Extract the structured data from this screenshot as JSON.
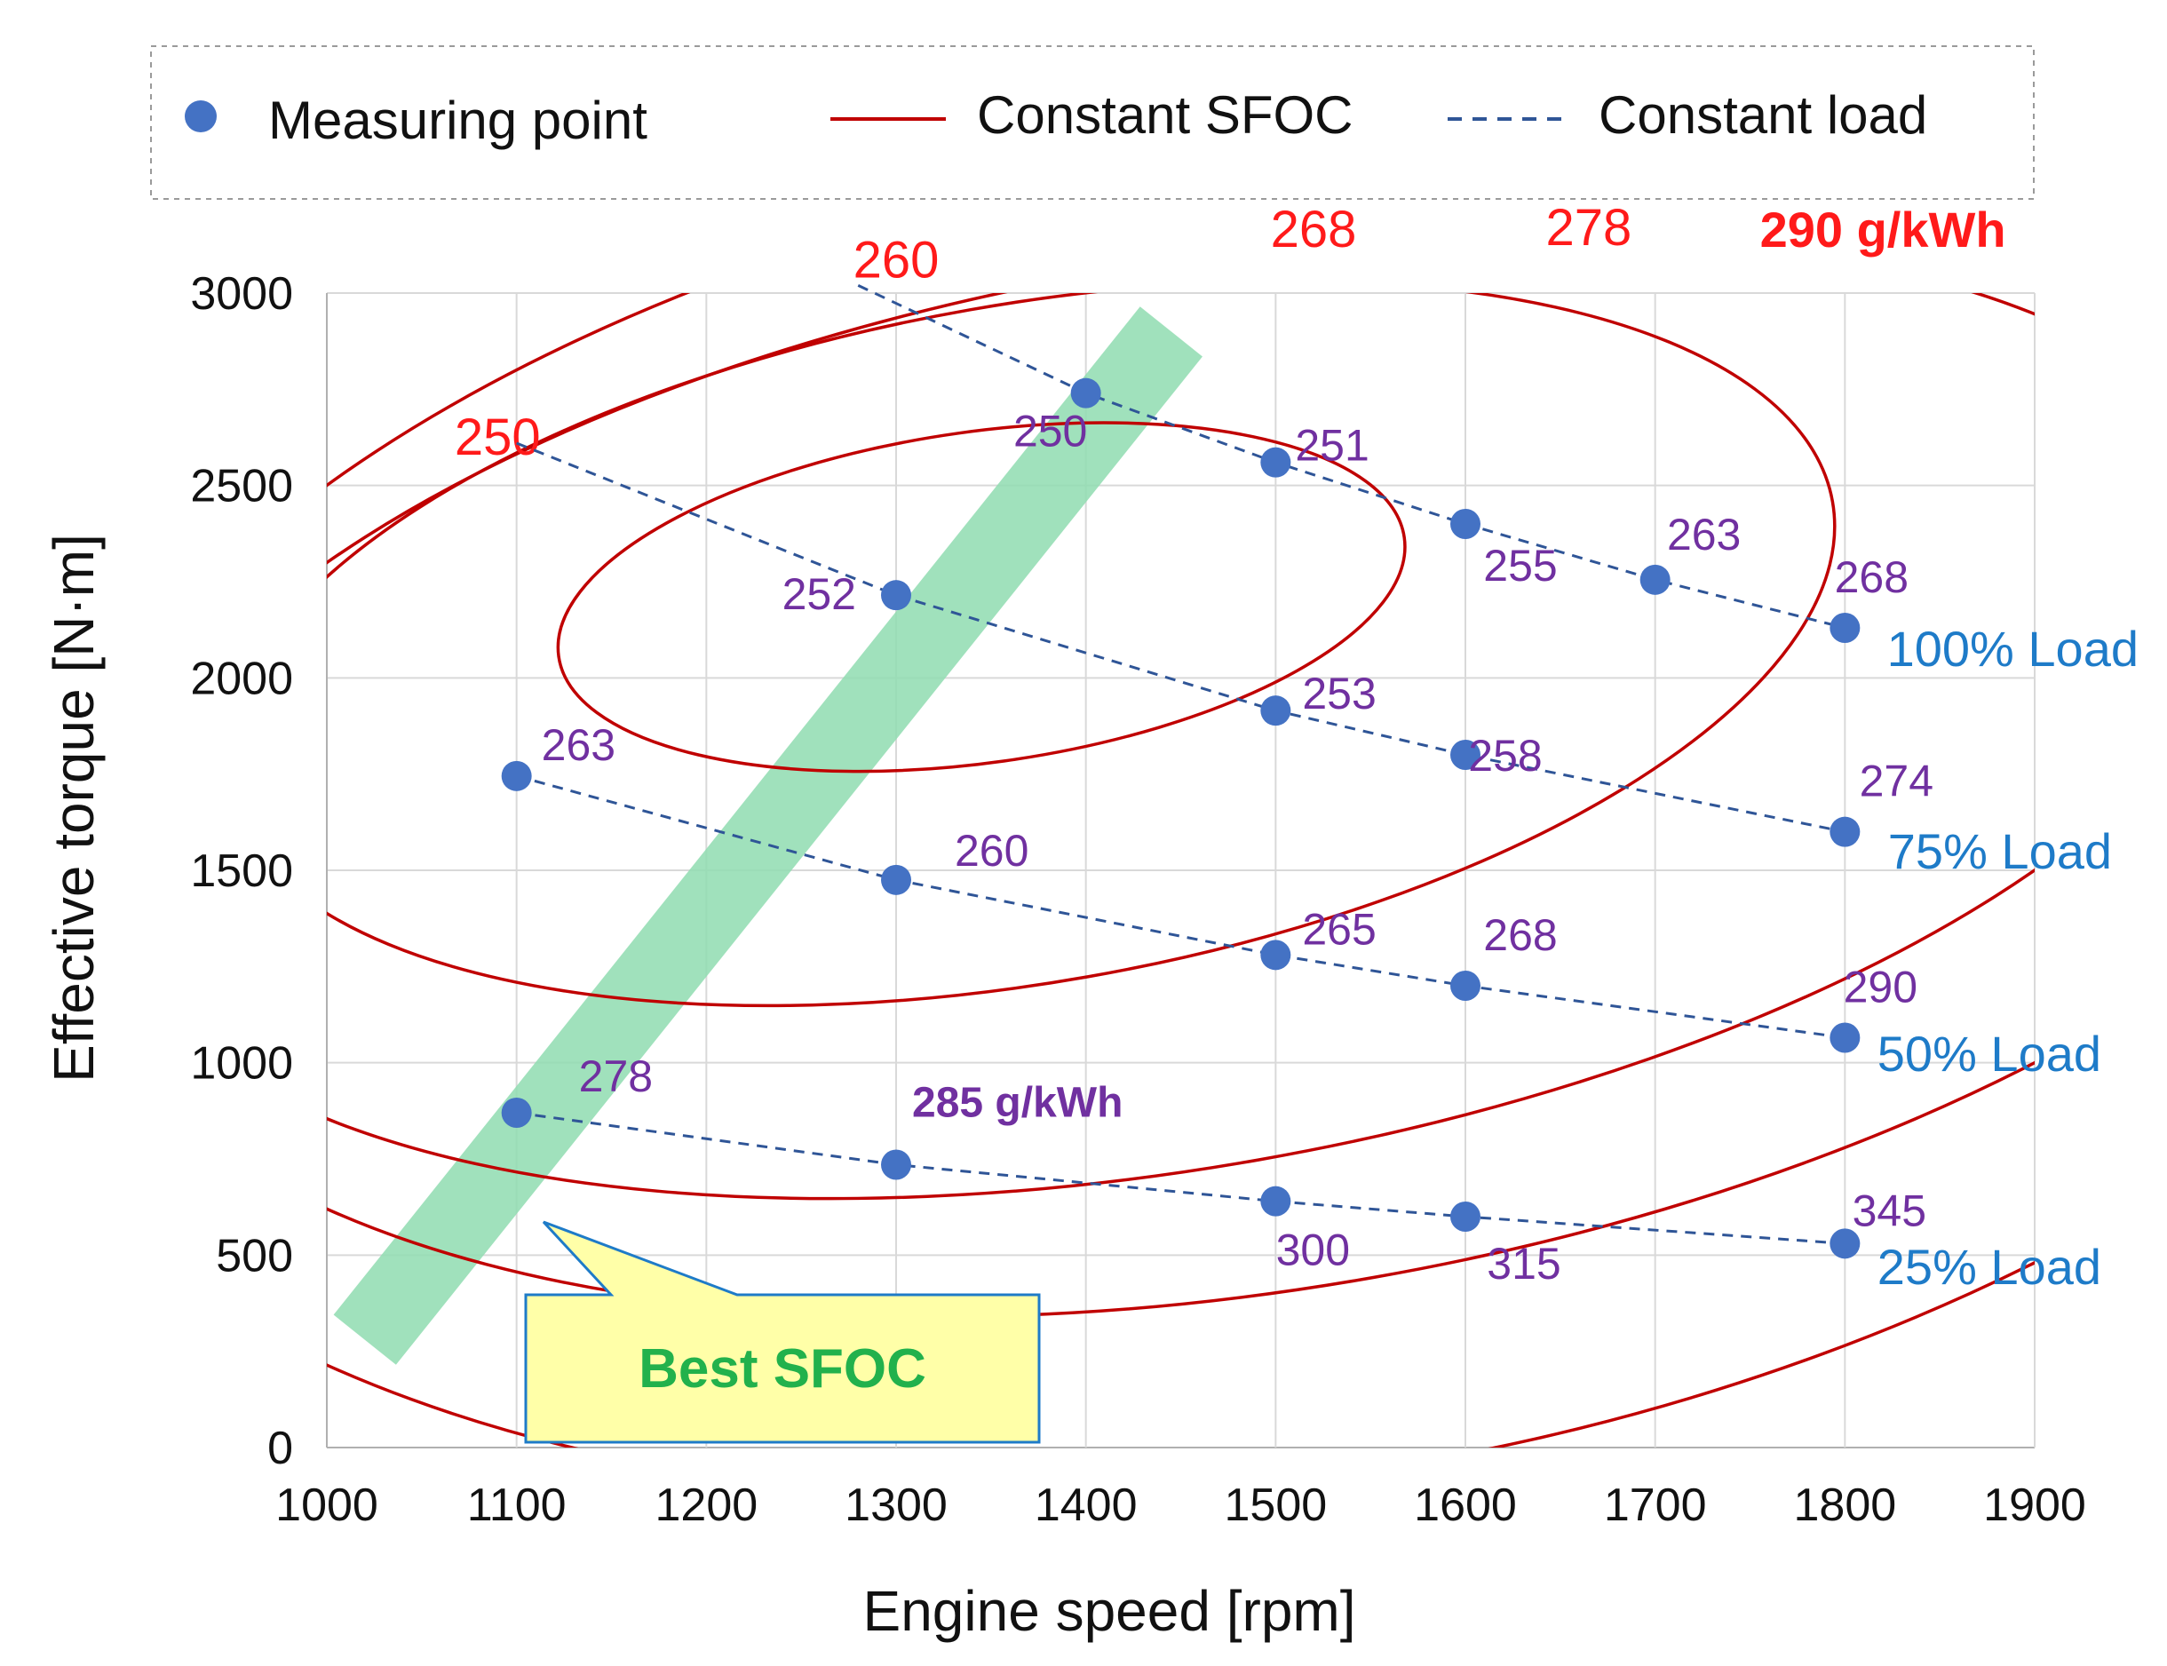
{
  "chart_data": {
    "type": "scatter",
    "title": "",
    "xlabel": "Engine speed [rpm]",
    "ylabel": "Effective torque [N·m]",
    "xlim": [
      1000,
      1900
    ],
    "ylim": [
      0,
      3000
    ],
    "xticks": [
      1000,
      1100,
      1200,
      1300,
      1400,
      1500,
      1600,
      1700,
      1800,
      1900
    ],
    "yticks": [
      0,
      500,
      1000,
      1500,
      2000,
      2500,
      3000
    ],
    "grid": true,
    "legend": {
      "placement": "top",
      "entries": [
        {
          "name": "Measuring point",
          "kind": "marker",
          "color": "#4472c4"
        },
        {
          "name": "Constant SFOC",
          "kind": "solid-line",
          "color": "#c00000"
        },
        {
          "name": "Constant load",
          "kind": "dashed-line",
          "color": "#2f5597"
        }
      ]
    },
    "colors": {
      "marker": "#4472c4",
      "sfoc_line": "#c00000",
      "load_line": "#2f5597",
      "sfoc_label": "#ff1a1a",
      "point_label": "#7030a0",
      "load_label": "#1e7bc8",
      "best_band": "#8fdcb0",
      "callout_fill": "#ffffa8",
      "callout_border": "#1e7bc8",
      "callout_text": "#22b14c"
    },
    "series": [
      {
        "name": "100% Load",
        "line_start": [
          1280,
          3020
        ],
        "points": [
          {
            "x": 1400,
            "y": 2740,
            "sfoc": "250"
          },
          {
            "x": 1500,
            "y": 2560,
            "sfoc": "251"
          },
          {
            "x": 1600,
            "y": 2400,
            "sfoc": "255"
          },
          {
            "x": 1700,
            "y": 2255,
            "sfoc": "263"
          },
          {
            "x": 1800,
            "y": 2130,
            "sfoc": "268"
          }
        ]
      },
      {
        "name": "75% Load",
        "line_start": [
          1100,
          2610
        ],
        "points": [
          {
            "x": 1300,
            "y": 2215,
            "sfoc": "252"
          },
          {
            "x": 1500,
            "y": 1915,
            "sfoc": "253"
          },
          {
            "x": 1600,
            "y": 1800,
            "sfoc": "258"
          },
          {
            "x": 1800,
            "y": 1600,
            "sfoc": "274"
          }
        ]
      },
      {
        "name": "50% Load",
        "points": [
          {
            "x": 1100,
            "y": 1745,
            "sfoc": "263"
          },
          {
            "x": 1300,
            "y": 1475,
            "sfoc": "260"
          },
          {
            "x": 1500,
            "y": 1280,
            "sfoc": "265"
          },
          {
            "x": 1600,
            "y": 1200,
            "sfoc": "268"
          },
          {
            "x": 1800,
            "y": 1065,
            "sfoc": "290"
          }
        ]
      },
      {
        "name": "25% Load",
        "points": [
          {
            "x": 1100,
            "y": 870,
            "sfoc": "278"
          },
          {
            "x": 1300,
            "y": 735,
            "sfoc": "285 g/kWh"
          },
          {
            "x": 1500,
            "y": 640,
            "sfoc": "300"
          },
          {
            "x": 1600,
            "y": 600,
            "sfoc": "315"
          },
          {
            "x": 1800,
            "y": 530,
            "sfoc": "345"
          }
        ]
      }
    ],
    "constant_sfoc_contours": [
      {
        "label": "250",
        "center": [
          1345,
          2210
        ],
        "semi_axes_rpm_nm": [
          225,
          430
        ],
        "rotation_deg": 8
      },
      {
        "label": "260",
        "center": [
          1370,
          2090
        ],
        "semi_axes_rpm_nm": [
          430,
          880
        ],
        "rotation_deg": 10
      },
      {
        "label": "268",
        "center": [
          1450,
          1900
        ],
        "semi_axes_rpm_nm": [
          575,
          1170
        ],
        "rotation_deg": 10
      },
      {
        "label": "278",
        "center": [
          1500,
          1900
        ],
        "semi_axes_rpm_nm": [
          650,
          1480
        ],
        "rotation_deg": 10
      },
      {
        "label": "290 g/kWh",
        "center": [
          1510,
          2200
        ],
        "semi_axes_rpm_nm": [
          760,
          2260
        ],
        "rotation_deg": 11
      }
    ],
    "annotations": {
      "callout": "Best SFOC",
      "best_band": {
        "from": [
          1020,
          280
        ],
        "to": [
          1445,
          2900
        ]
      }
    }
  }
}
